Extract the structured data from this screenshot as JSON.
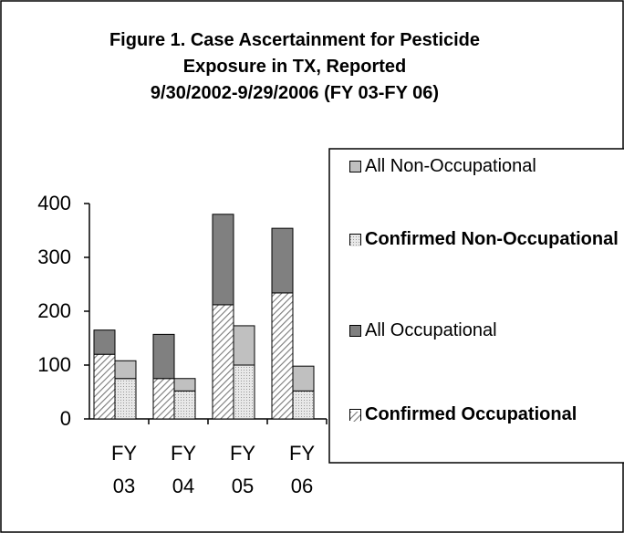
{
  "chart_data": {
    "type": "bar",
    "title": [
      "Figure 1. Case Ascertainment for Pesticide",
      "Exposure in TX, Reported",
      "9/30/2002-9/29/2006 (FY 03-FY 06)"
    ],
    "categories": [
      "FY 03",
      "FY 04",
      "FY 05",
      "FY 06"
    ],
    "series": [
      {
        "name": "All Non-Occupational",
        "color": "#c0c0c0",
        "stack": 1,
        "bold": false,
        "values": [
          33,
          23,
          73,
          46
        ]
      },
      {
        "name": "Confirmed Non-Occupational",
        "color": "#e8e8e8",
        "pattern": "dots",
        "stack": 1,
        "bold": true,
        "values": [
          75,
          52,
          100,
          52
        ]
      },
      {
        "name": "All Occupational",
        "color": "#808080",
        "stack": 0,
        "bold": false,
        "values": [
          45,
          82,
          168,
          120
        ]
      },
      {
        "name": "Confirmed Occupational",
        "color": "#ffffff",
        "pattern": "hatch",
        "stack": 0,
        "bold": true,
        "values": [
          120,
          75,
          212,
          234
        ]
      }
    ],
    "ylim": [
      0,
      400
    ],
    "yticks": [
      0,
      100,
      200,
      300,
      400
    ],
    "grid": false
  }
}
